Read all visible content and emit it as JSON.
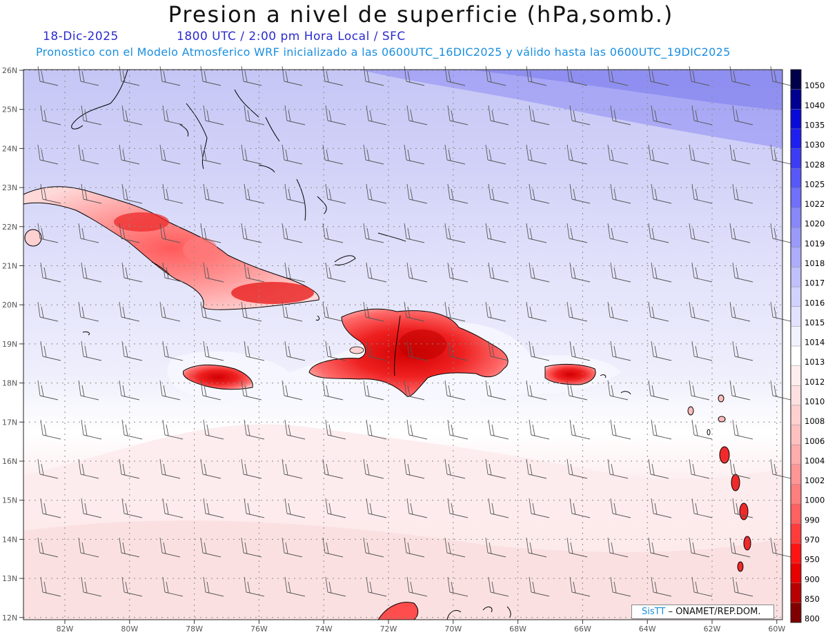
{
  "header": {
    "title": "Presion a nivel de superficie (hPa,somb.)",
    "date": "18-Dic-2025",
    "time_info": "1800 UTC / 2:00 pm Hora Local / SFC",
    "model_info": "Pronostico con el Modelo Atmosferico WRF inicializado a las 0600UTC_16DIC2025 y válido hasta las  0600UTC_19DIC2025"
  },
  "axes": {
    "lat_labels": [
      "26N",
      "25N",
      "24N",
      "23N",
      "22N",
      "21N",
      "20N",
      "19N",
      "18N",
      "17N",
      "16N",
      "15N",
      "14N",
      "13N",
      "12N"
    ],
    "lon_labels": [
      "82W",
      "80W",
      "78W",
      "76W",
      "74W",
      "72W",
      "70W",
      "68W",
      "66W",
      "64W",
      "62W",
      "60W"
    ]
  },
  "colorbar": {
    "labels": [
      "1050",
      "1040",
      "1035",
      "1030",
      "1028",
      "1025",
      "1022",
      "1020",
      "1019",
      "1018",
      "1017",
      "1016",
      "1015",
      "1014",
      "1013",
      "1012",
      "1010",
      "1008",
      "1006",
      "1004",
      "1002",
      "1000",
      "990",
      "970",
      "950",
      "900",
      "850",
      "800"
    ],
    "colors": [
      "#00004a",
      "#000090",
      "#0a0ad8",
      "#1e1ef0",
      "#3c3cf5",
      "#5858f8",
      "#7070fa",
      "#8888fb",
      "#9a9afb",
      "#adadfc",
      "#c0c0fd",
      "#d2d2fe",
      "#e2e2fe",
      "#f2f2ff",
      "#ffffff",
      "#ffeeee",
      "#ffe0e0",
      "#ffd0d0",
      "#ffc0c0",
      "#ffacac",
      "#ff9696",
      "#ff7e7e",
      "#ff6060",
      "#ff3c3c",
      "#ff1414",
      "#e80000",
      "#b80000",
      "#800000"
    ]
  },
  "credit": {
    "brand": "SisTT",
    "text": "– ONAMET/REP.DOM."
  }
}
